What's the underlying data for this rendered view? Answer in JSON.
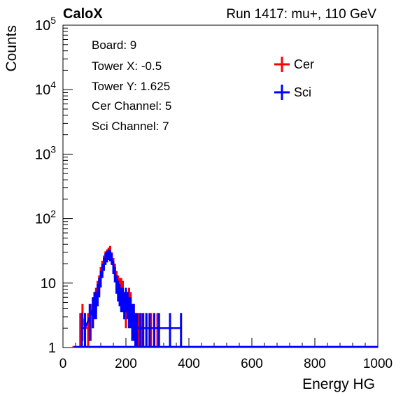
{
  "header": {
    "left_label": "CaloX",
    "right_label": "Run 1417: mu+, 110 GeV"
  },
  "info_box": [
    {
      "label": "Board: 9"
    },
    {
      "label": "Tower X: -0.5"
    },
    {
      "label": "Tower Y: 1.625"
    },
    {
      "label": "Cer Channel: 5"
    },
    {
      "label": "Sci Channel: 7"
    }
  ],
  "chart_data": {
    "type": "line",
    "xlabel": "Energy HG",
    "ylabel": "Counts",
    "xlim": [
      0,
      1000
    ],
    "ylim": [
      1,
      100000
    ],
    "yscale": "log",
    "x_ticks": [
      {
        "value": 0,
        "label": "0"
      },
      {
        "value": 200,
        "label": "200"
      },
      {
        "value": 400,
        "label": "400"
      },
      {
        "value": 600,
        "label": "600"
      },
      {
        "value": 800,
        "label": "800"
      },
      {
        "value": 1000,
        "label": "1000"
      }
    ],
    "y_ticks": [
      {
        "value": 1,
        "label": "1"
      },
      {
        "value": 10,
        "label": "10"
      },
      {
        "value": 100,
        "label": "10^2"
      },
      {
        "value": 1000,
        "label": "10^3"
      },
      {
        "value": 10000,
        "label": "10^4"
      },
      {
        "value": 100000,
        "label": "10^5"
      }
    ],
    "grid": false,
    "legend_position": "top-right",
    "series": [
      {
        "name": "Cer",
        "color": "#ff0000",
        "points": [
          [
            55,
            2
          ],
          [
            62,
            3
          ],
          [
            70,
            2
          ],
          [
            80,
            2
          ],
          [
            88,
            3
          ],
          [
            95,
            4
          ],
          [
            100,
            5
          ],
          [
            105,
            6
          ],
          [
            110,
            8
          ],
          [
            115,
            10
          ],
          [
            120,
            14
          ],
          [
            125,
            18
          ],
          [
            130,
            22
          ],
          [
            135,
            26
          ],
          [
            140,
            28
          ],
          [
            145,
            30
          ],
          [
            150,
            32
          ],
          [
            155,
            25
          ],
          [
            160,
            20
          ],
          [
            165,
            16
          ],
          [
            170,
            12
          ],
          [
            175,
            10
          ],
          [
            180,
            9
          ],
          [
            185,
            9
          ],
          [
            190,
            8
          ],
          [
            195,
            5
          ],
          [
            200,
            4
          ],
          [
            205,
            5
          ],
          [
            210,
            6
          ],
          [
            215,
            5
          ],
          [
            220,
            3
          ],
          [
            225,
            3
          ],
          [
            230,
            2
          ],
          [
            240,
            2
          ],
          [
            250,
            2
          ],
          [
            265,
            2
          ],
          [
            280,
            2
          ],
          [
            300,
            2
          ]
        ]
      },
      {
        "name": "Sci",
        "color": "#0000ff",
        "points": [
          [
            60,
            2
          ],
          [
            70,
            2
          ],
          [
            85,
            3
          ],
          [
            95,
            4
          ],
          [
            100,
            5
          ],
          [
            105,
            5
          ],
          [
            110,
            7
          ],
          [
            115,
            9
          ],
          [
            120,
            12
          ],
          [
            125,
            16
          ],
          [
            130,
            20
          ],
          [
            135,
            24
          ],
          [
            140,
            26
          ],
          [
            145,
            28
          ],
          [
            150,
            27
          ],
          [
            155,
            24
          ],
          [
            160,
            18
          ],
          [
            165,
            14
          ],
          [
            170,
            10
          ],
          [
            175,
            8
          ],
          [
            180,
            7
          ],
          [
            185,
            6
          ],
          [
            190,
            6
          ],
          [
            195,
            5
          ],
          [
            200,
            6
          ],
          [
            205,
            5
          ],
          [
            210,
            4
          ],
          [
            215,
            4
          ],
          [
            220,
            3
          ],
          [
            225,
            3
          ],
          [
            230,
            2
          ],
          [
            235,
            2
          ],
          [
            245,
            2
          ],
          [
            255,
            2
          ],
          [
            265,
            2
          ],
          [
            275,
            2
          ],
          [
            290,
            2
          ],
          [
            305,
            2
          ],
          [
            340,
            2
          ],
          [
            375,
            2
          ]
        ]
      }
    ]
  }
}
